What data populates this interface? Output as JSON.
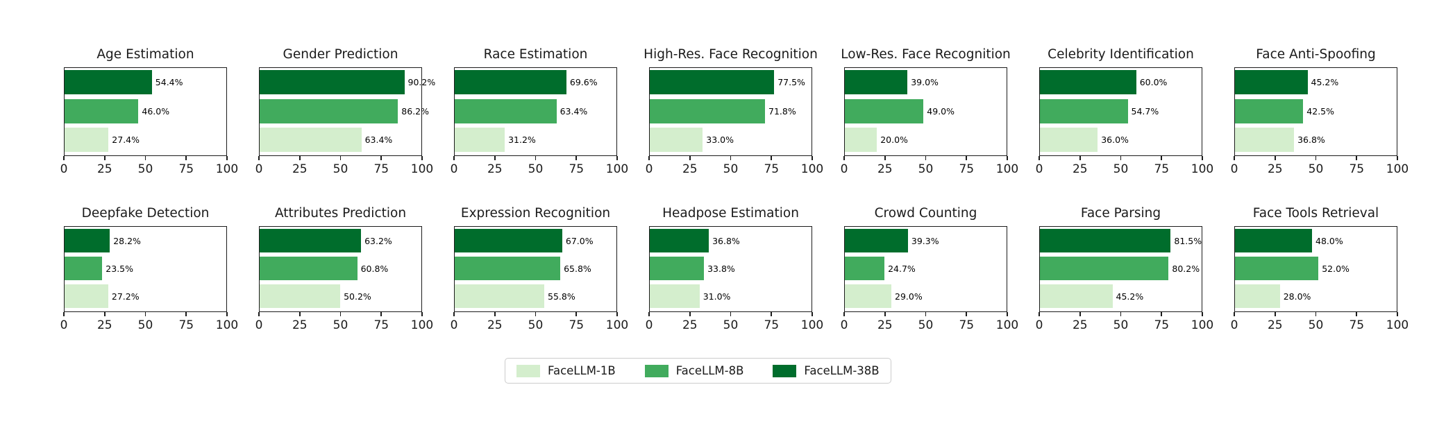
{
  "chart_data": {
    "type": "bar",
    "orientation": "horizontal",
    "grid": false,
    "xlim": [
      0,
      100
    ],
    "x_ticks": [
      0,
      25,
      50,
      75,
      100
    ],
    "value_suffix": "%",
    "series_top_to_bottom": [
      "FaceLLM-38B",
      "FaceLLM-8B",
      "FaceLLM-1B"
    ],
    "series_colors": {
      "FaceLLM-38B": "#006d2c",
      "FaceLLM-8B": "#41ab5d",
      "FaceLLM-1B": "#d4eecd"
    },
    "legend": {
      "position": "bottom-center",
      "entries": [
        {
          "label": "FaceLLM-1B",
          "color": "#d4eecd"
        },
        {
          "label": "FaceLLM-8B",
          "color": "#41ab5d"
        },
        {
          "label": "FaceLLM-38B",
          "color": "#006d2c"
        }
      ]
    },
    "subplots": [
      {
        "title": "Age Estimation",
        "values": [
          54.4,
          46.0,
          27.4
        ],
        "labels": [
          "54.4%",
          "46.0%",
          "27.4%"
        ]
      },
      {
        "title": "Gender Prediction",
        "values": [
          90.2,
          86.2,
          63.4
        ],
        "labels": [
          "90.2%",
          "86.2%",
          "63.4%"
        ]
      },
      {
        "title": "Race Estimation",
        "values": [
          69.6,
          63.4,
          31.2
        ],
        "labels": [
          "69.6%",
          "63.4%",
          "31.2%"
        ]
      },
      {
        "title": "High-Res. Face Recognition",
        "values": [
          77.5,
          71.8,
          33.0
        ],
        "labels": [
          "77.5%",
          "71.8%",
          "33.0%"
        ]
      },
      {
        "title": "Low-Res. Face Recognition",
        "values": [
          39.0,
          49.0,
          20.0
        ],
        "labels": [
          "39.0%",
          "49.0%",
          "20.0%"
        ]
      },
      {
        "title": "Celebrity Identification",
        "values": [
          60.0,
          54.7,
          36.0
        ],
        "labels": [
          "60.0%",
          "54.7%",
          "36.0%"
        ]
      },
      {
        "title": "Face Anti-Spoofing",
        "values": [
          45.2,
          42.5,
          36.8
        ],
        "labels": [
          "45.2%",
          "42.5%",
          "36.8%"
        ]
      },
      {
        "title": "Deepfake Detection",
        "values": [
          28.2,
          23.5,
          27.2
        ],
        "labels": [
          "28.2%",
          "23.5%",
          "27.2%"
        ]
      },
      {
        "title": "Attributes Prediction",
        "values": [
          63.2,
          60.8,
          50.2
        ],
        "labels": [
          "63.2%",
          "60.8%",
          "50.2%"
        ]
      },
      {
        "title": "Expression Recognition",
        "values": [
          67.0,
          65.8,
          55.8
        ],
        "labels": [
          "67.0%",
          "65.8%",
          "55.8%"
        ]
      },
      {
        "title": "Headpose Estimation",
        "values": [
          36.8,
          33.8,
          31.0
        ],
        "labels": [
          "36.8%",
          "33.8%",
          "31.0%"
        ]
      },
      {
        "title": "Crowd Counting",
        "values": [
          39.3,
          24.7,
          29.0
        ],
        "labels": [
          "39.3%",
          "24.7%",
          "29.0%"
        ]
      },
      {
        "title": "Face Parsing",
        "values": [
          81.5,
          80.2,
          45.2
        ],
        "labels": [
          "81.5%",
          "80.2%",
          "45.2%"
        ]
      },
      {
        "title": "Face Tools Retrieval",
        "values": [
          48.0,
          52.0,
          28.0
        ],
        "labels": [
          "48.0%",
          "52.0%",
          "28.0%"
        ]
      }
    ]
  }
}
